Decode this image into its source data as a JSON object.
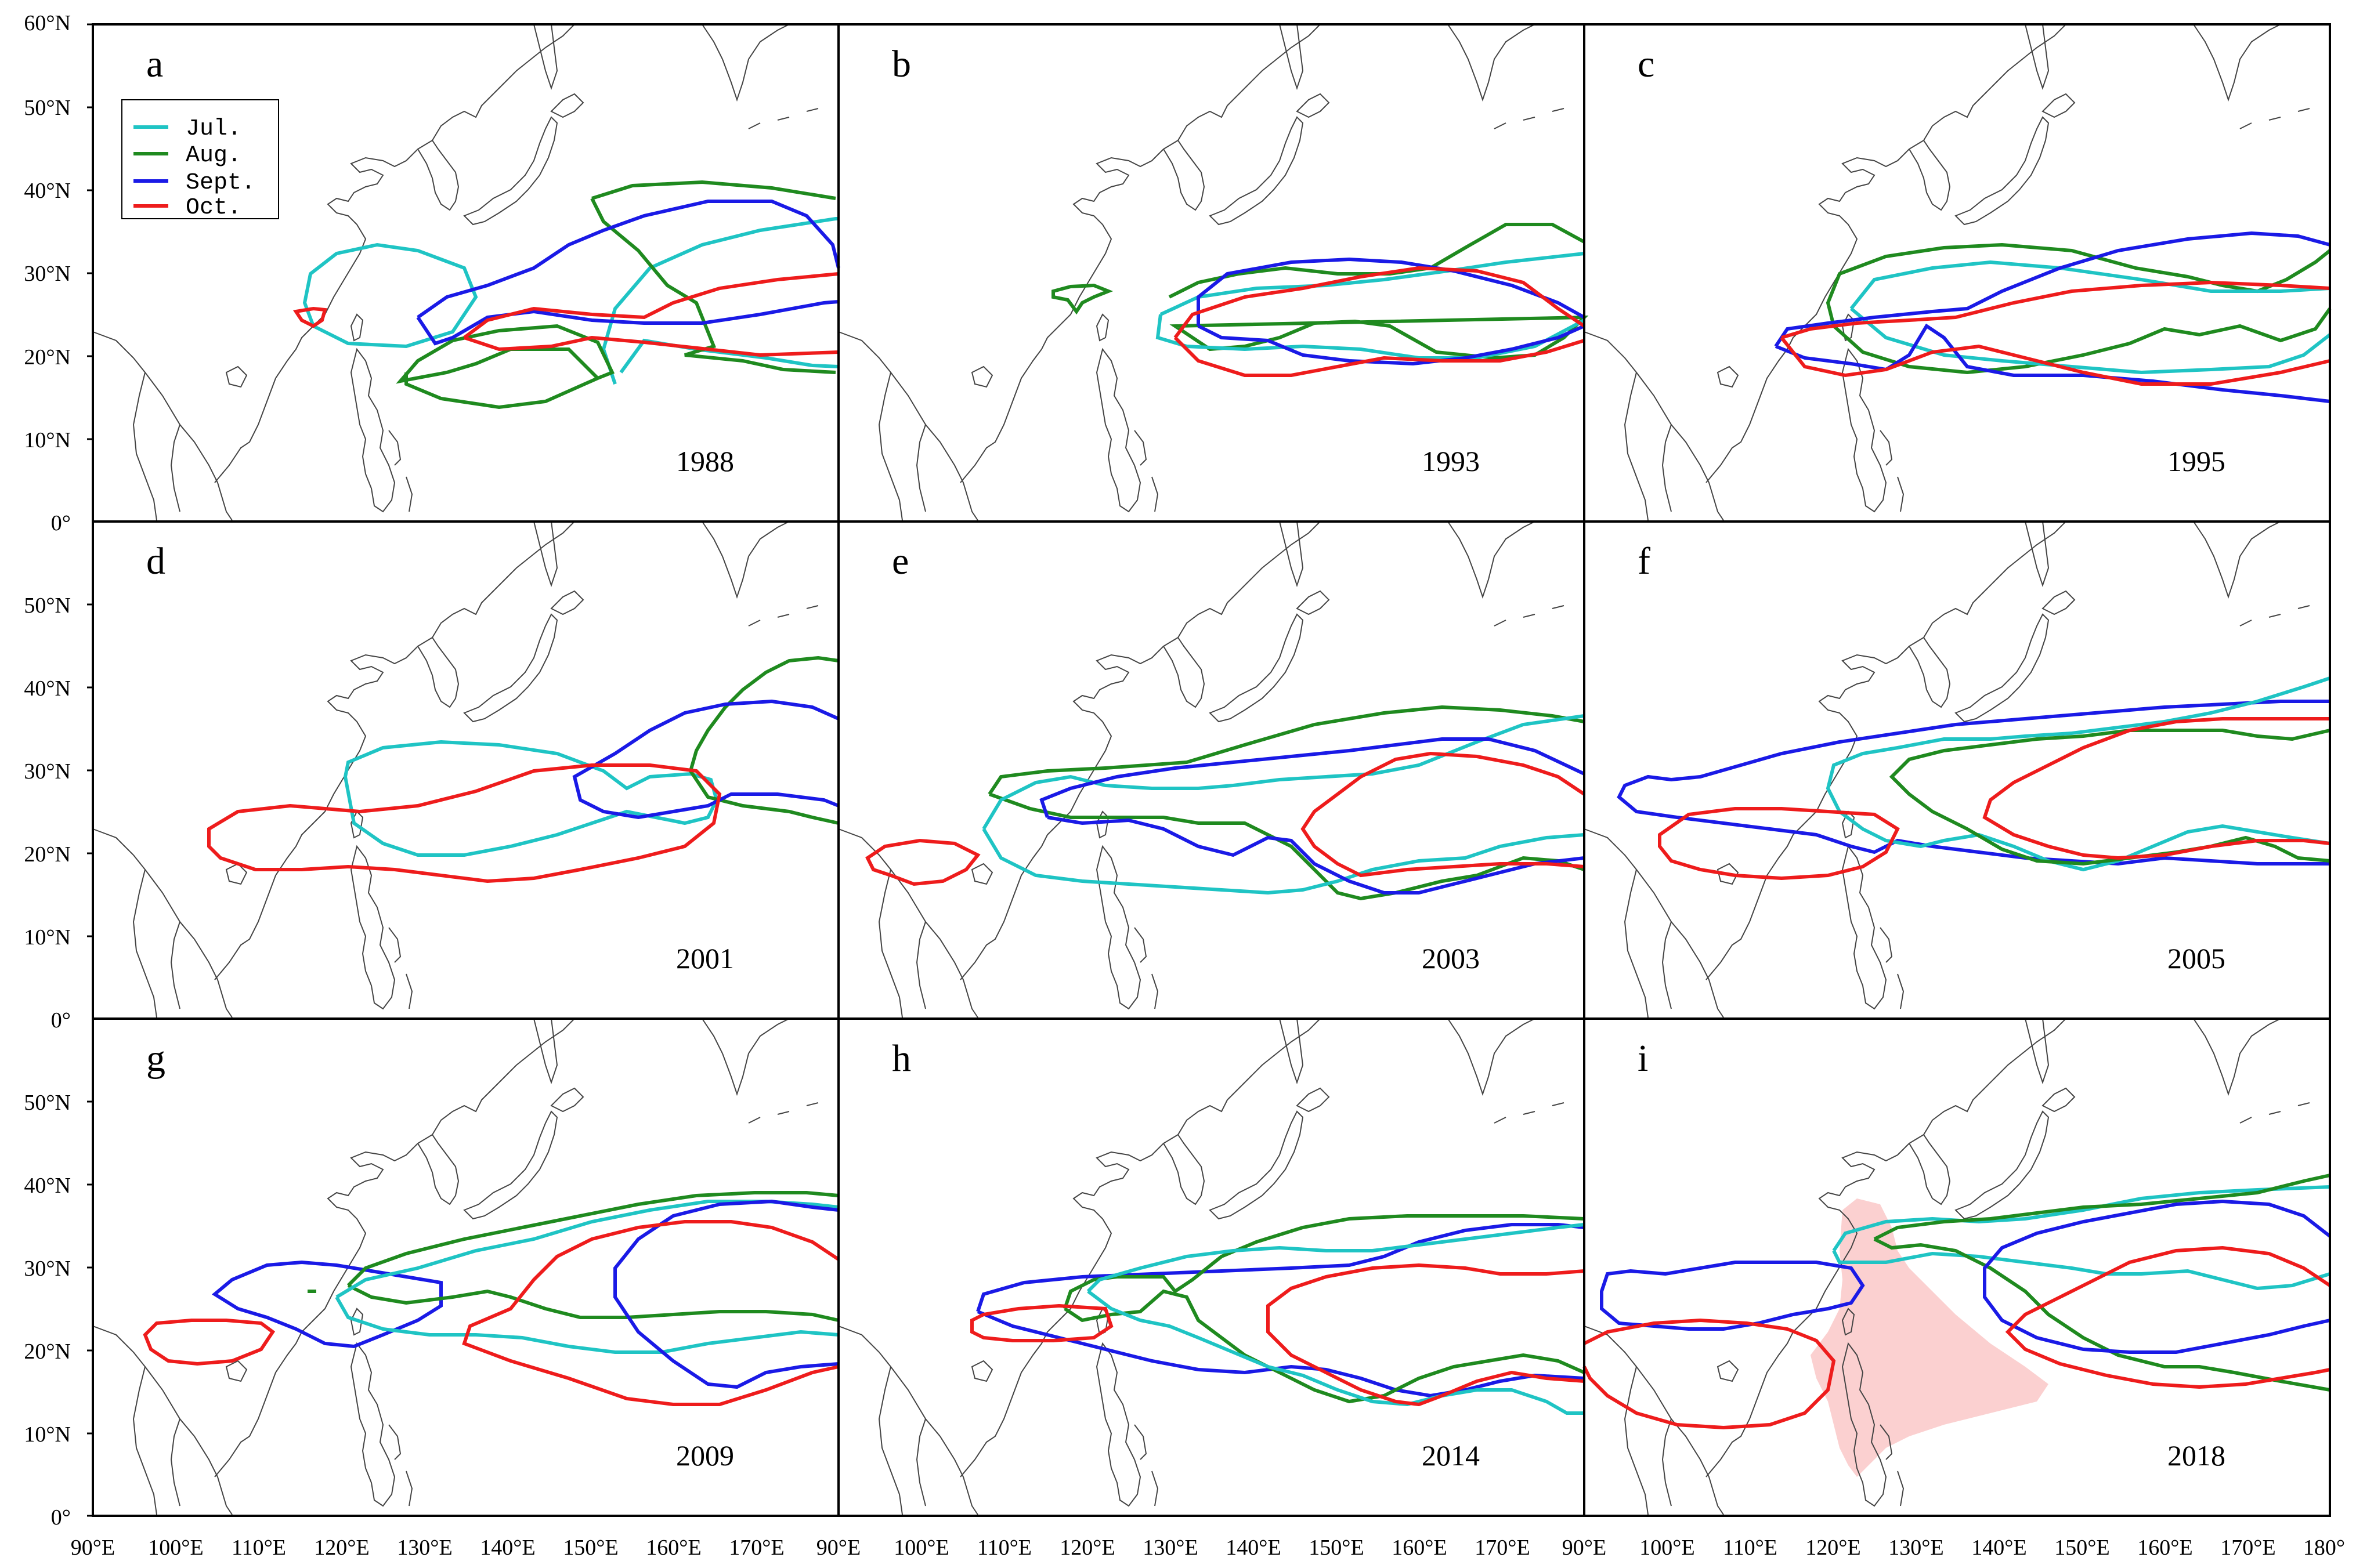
{
  "figure": {
    "y_axis_labels": [
      "60°N",
      "50°N",
      "40°N",
      "30°N",
      "20°N",
      "10°N",
      "0°"
    ],
    "x_axis_labels": [
      "90°E",
      "100°E",
      "110°E",
      "120°E",
      "130°E",
      "140°E",
      "150°E",
      "160°E",
      "170°E",
      "90°E",
      "100°E",
      "110°E",
      "120°E",
      "130°E",
      "140°E",
      "150°E",
      "160°E",
      "170°E",
      "90°E",
      "100°E",
      "110°E",
      "120°E",
      "130°E",
      "140°E",
      "150°E",
      "160°E",
      "170°E",
      "180°"
    ]
  },
  "legend": {
    "entries": [
      {
        "label": "Jul.",
        "color": "#1fc4c4"
      },
      {
        "label": "Aug.",
        "color": "#1f8a1f"
      },
      {
        "label": "Sept.",
        "color": "#1a1ae6"
      },
      {
        "label": "Oct.",
        "color": "#ee1c1c"
      }
    ]
  },
  "colors": {
    "jul": "#1fc4c4",
    "aug": "#1f8a1f",
    "sep": "#1a1ae6",
    "oct": "#ee1c1c",
    "shade": "#fbd0d0"
  },
  "panels": [
    {
      "letter": "a",
      "year": "1988"
    },
    {
      "letter": "b",
      "year": "1993"
    },
    {
      "letter": "c",
      "year": "1995"
    },
    {
      "letter": "d",
      "year": "2001"
    },
    {
      "letter": "e",
      "year": "2003"
    },
    {
      "letter": "f",
      "year": "2005"
    },
    {
      "letter": "g",
      "year": "2009"
    },
    {
      "letter": "h",
      "year": "2014"
    },
    {
      "letter": "i",
      "year": "2018"
    }
  ]
}
